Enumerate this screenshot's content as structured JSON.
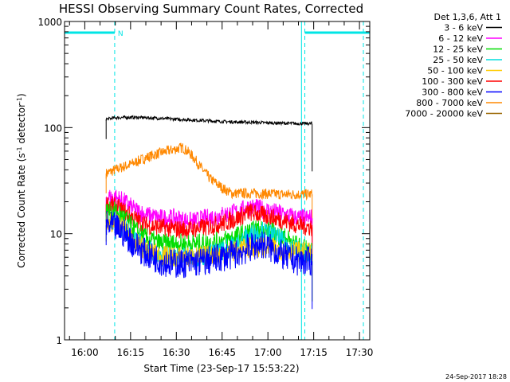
{
  "chart_data": {
    "type": "line",
    "title": "HESSI Observing Summary Count Rates, Corrected",
    "xlabel": "Start Time (23-Sep-17 15:53:22)",
    "ylabel_main": "Corrected Count Rate (s",
    "ylabel_sup1": "-1",
    "ylabel_mid": " detector",
    "ylabel_sup2": "-1",
    "ylabel_end": ")",
    "y_scale": "log",
    "ylim": [
      1,
      1000
    ],
    "xlim_minutes": [
      -6.63,
      93.37
    ],
    "x_ticks": [
      {
        "label": "16:00",
        "min": 0
      },
      {
        "label": "16:15",
        "min": 15
      },
      {
        "label": "16:30",
        "min": 30
      },
      {
        "label": "16:45",
        "min": 45
      },
      {
        "label": "17:00",
        "min": 60
      },
      {
        "label": "17:15",
        "min": 75
      },
      {
        "label": "17:30",
        "min": 90
      }
    ],
    "y_ticks": [
      {
        "label": "1",
        "value": 1
      },
      {
        "label": "10",
        "value": 10
      },
      {
        "label": "100",
        "value": 100
      },
      {
        "label": "1000",
        "value": 1000
      }
    ],
    "legend_header": "Det 1,3,6, Att 1",
    "legend_position": "outside-right",
    "timestamp": "24-Sep-2017 18:28",
    "night_flag": "N",
    "night_intervals_minutes": [
      [
        -6.63,
        9.8
      ],
      [
        72.1,
        93.37
      ]
    ],
    "night_boundaries_minutes": [
      9.8,
      72.1
    ],
    "saa_boundaries_minutes": [
      -6.63,
      71.0
    ],
    "data_range_minutes": [
      7.0,
      74.5
    ],
    "series": [
      {
        "name": "3 - 6 keV",
        "color": "#000000",
        "points": [
          [
            7,
            120
          ],
          [
            10,
            124
          ],
          [
            15,
            125
          ],
          [
            20,
            124
          ],
          [
            25,
            122
          ],
          [
            30,
            120
          ],
          [
            35,
            118
          ],
          [
            40,
            116
          ],
          [
            45,
            114
          ],
          [
            50,
            113
          ],
          [
            55,
            112
          ],
          [
            60,
            111
          ],
          [
            65,
            110
          ],
          [
            70,
            109
          ],
          [
            74.5,
            109
          ]
        ]
      },
      {
        "name": "6 - 12 keV",
        "color": "#ff00ff",
        "points": [
          [
            7,
            22
          ],
          [
            10,
            22
          ],
          [
            13,
            20
          ],
          [
            16,
            17
          ],
          [
            20,
            15
          ],
          [
            25,
            14
          ],
          [
            30,
            14
          ],
          [
            35,
            13
          ],
          [
            40,
            14
          ],
          [
            45,
            15
          ],
          [
            50,
            16
          ],
          [
            54,
            18
          ],
          [
            58,
            17
          ],
          [
            62,
            16
          ],
          [
            66,
            15
          ],
          [
            70,
            14
          ],
          [
            74.5,
            14
          ]
        ]
      },
      {
        "name": "12 - 25 keV",
        "color": "#00dd00",
        "points": [
          [
            7,
            16
          ],
          [
            10,
            16
          ],
          [
            13,
            14
          ],
          [
            16,
            11
          ],
          [
            20,
            9
          ],
          [
            25,
            8
          ],
          [
            30,
            8
          ],
          [
            35,
            8
          ],
          [
            40,
            8
          ],
          [
            45,
            8.5
          ],
          [
            50,
            9.5
          ],
          [
            55,
            10.5
          ],
          [
            58,
            11
          ],
          [
            62,
            10
          ],
          [
            66,
            9
          ],
          [
            70,
            7.5
          ],
          [
            74.5,
            6.5
          ]
        ]
      },
      {
        "name": "25 - 50 keV",
        "color": "#00dddd",
        "points": [
          [
            7,
            13
          ],
          [
            10,
            13
          ],
          [
            13,
            11
          ],
          [
            16,
            9
          ],
          [
            20,
            7
          ],
          [
            25,
            6.2
          ],
          [
            30,
            6
          ],
          [
            35,
            6
          ],
          [
            40,
            6.3
          ],
          [
            45,
            7
          ],
          [
            50,
            8
          ],
          [
            55,
            10
          ],
          [
            58,
            10.5
          ],
          [
            62,
            9.5
          ],
          [
            66,
            8
          ],
          [
            70,
            7
          ],
          [
            74.5,
            6.5
          ]
        ]
      },
      {
        "name": "50 - 100 keV",
        "color": "#ffcc00",
        "points": [
          [
            7,
            13
          ],
          [
            10,
            12.5
          ],
          [
            13,
            11
          ],
          [
            16,
            8.5
          ],
          [
            20,
            7
          ],
          [
            25,
            6.2
          ],
          [
            30,
            6
          ],
          [
            35,
            6
          ],
          [
            40,
            6.2
          ],
          [
            45,
            6.5
          ],
          [
            50,
            7
          ],
          [
            55,
            7.5
          ],
          [
            60,
            7.5
          ],
          [
            65,
            7
          ],
          [
            70,
            6.8
          ],
          [
            74.5,
            6.5
          ]
        ]
      },
      {
        "name": "100 - 300 keV",
        "color": "#ff0000",
        "points": [
          [
            7,
            19
          ],
          [
            10,
            18
          ],
          [
            13,
            16
          ],
          [
            16,
            14
          ],
          [
            20,
            12
          ],
          [
            25,
            11.5
          ],
          [
            30,
            11
          ],
          [
            35,
            11
          ],
          [
            40,
            11.5
          ],
          [
            45,
            12.5
          ],
          [
            50,
            14
          ],
          [
            54,
            16
          ],
          [
            58,
            15
          ],
          [
            62,
            14
          ],
          [
            66,
            13
          ],
          [
            70,
            12
          ],
          [
            74.5,
            11.5
          ]
        ]
      },
      {
        "name": "300 - 800 keV",
        "color": "#0000ff",
        "points": [
          [
            7,
            12
          ],
          [
            10,
            11.5
          ],
          [
            13,
            10
          ],
          [
            16,
            8
          ],
          [
            20,
            6.5
          ],
          [
            25,
            5.5
          ],
          [
            30,
            5.2
          ],
          [
            35,
            5.3
          ],
          [
            40,
            5.5
          ],
          [
            45,
            6
          ],
          [
            50,
            6.5
          ],
          [
            55,
            7.5
          ],
          [
            58,
            8
          ],
          [
            62,
            7
          ],
          [
            66,
            6
          ],
          [
            70,
            5.5
          ],
          [
            74.5,
            5.5
          ]
        ]
      },
      {
        "name": "800 - 7000 keV",
        "color": "#ff8800",
        "points": [
          [
            7,
            37
          ],
          [
            10,
            40
          ],
          [
            15,
            45
          ],
          [
            20,
            52
          ],
          [
            25,
            58
          ],
          [
            30,
            63
          ],
          [
            32,
            65
          ],
          [
            35,
            55
          ],
          [
            38,
            42
          ],
          [
            41,
            33
          ],
          [
            45,
            27
          ],
          [
            48,
            24
          ],
          [
            55,
            24
          ],
          [
            65,
            23.5
          ],
          [
            74.5,
            23.5
          ]
        ]
      },
      {
        "name": "7000 - 20000 keV",
        "color": "#996600",
        "points": []
      }
    ]
  }
}
